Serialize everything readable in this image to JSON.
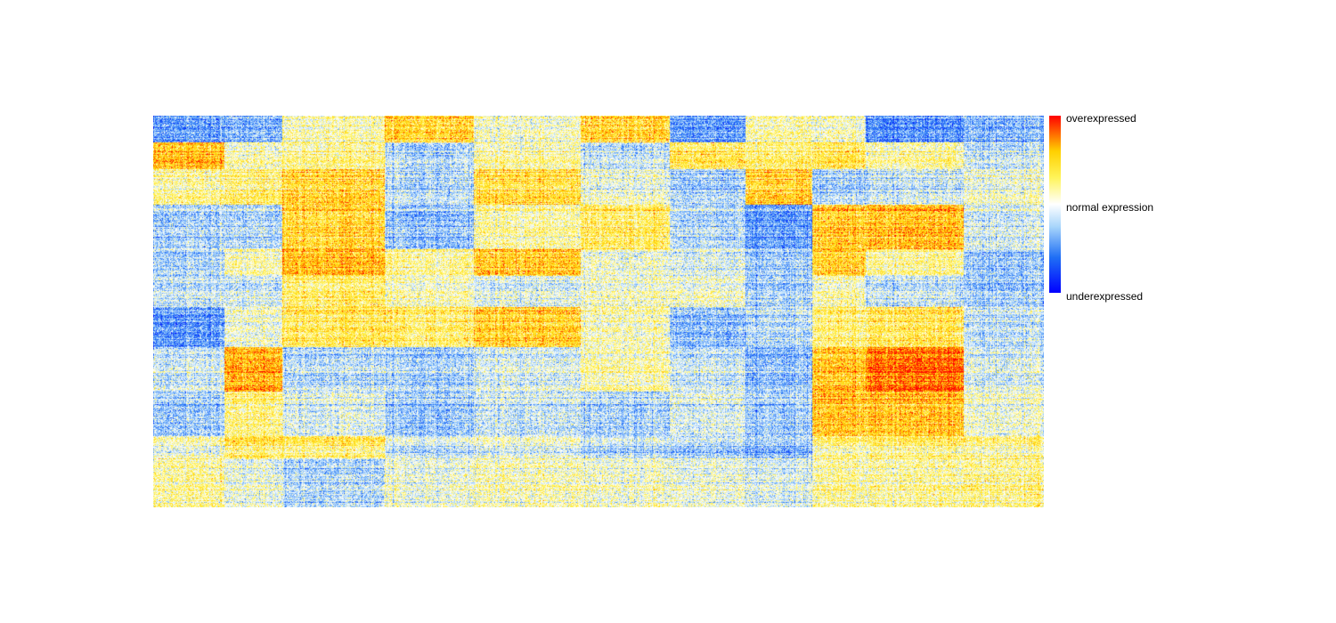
{
  "chart_data": {
    "type": "heatmap",
    "title": "",
    "xlabel": "",
    "ylabel": "",
    "grid": false,
    "legend_position": "right",
    "rows": 440,
    "columns": 1000,
    "value_range": [
      -1,
      1
    ],
    "colorscale": [
      {
        "value": -1.0,
        "color": "#0000ff"
      },
      {
        "value": -0.6,
        "color": "#1f6ff5"
      },
      {
        "value": -0.25,
        "color": "#a9d6fb"
      },
      {
        "value": 0.0,
        "color": "#ffffff"
      },
      {
        "value": 0.3,
        "color": "#fff45a"
      },
      {
        "value": 0.6,
        "color": "#ffd000"
      },
      {
        "value": 1.0,
        "color": "#ff0000"
      }
    ],
    "legend": {
      "top_label": "overexpressed",
      "middle_label": "normal expression",
      "bottom_label": "underexpressed"
    },
    "column_groups": [
      {
        "id": 1,
        "start": 0,
        "end": 80
      },
      {
        "id": 2,
        "start": 80,
        "end": 145
      },
      {
        "id": 3,
        "start": 145,
        "end": 260
      },
      {
        "id": 4,
        "start": 260,
        "end": 360
      },
      {
        "id": 5,
        "start": 360,
        "end": 480
      },
      {
        "id": 6,
        "start": 480,
        "end": 580
      },
      {
        "id": 7,
        "start": 580,
        "end": 665
      },
      {
        "id": 8,
        "start": 665,
        "end": 740
      },
      {
        "id": 9,
        "start": 740,
        "end": 800
      },
      {
        "id": 10,
        "start": 800,
        "end": 910
      },
      {
        "id": 11,
        "start": 910,
        "end": 1000
      }
    ],
    "row_blocks": [
      {
        "start": 0,
        "end": 30,
        "levels": [
          -0.45,
          -0.35,
          0.1,
          0.45,
          0.05,
          0.45,
          -0.45,
          0.1,
          0.05,
          -0.5,
          -0.35
        ]
      },
      {
        "start": 30,
        "end": 60,
        "levels": [
          0.55,
          0.1,
          0.2,
          -0.2,
          0.15,
          -0.15,
          0.35,
          0.25,
          0.35,
          0.15,
          -0.15
        ]
      },
      {
        "start": 60,
        "end": 100,
        "levels": [
          0.15,
          0.25,
          0.45,
          -0.2,
          0.4,
          0.0,
          -0.25,
          0.45,
          -0.25,
          -0.15,
          0.0
        ]
      },
      {
        "start": 100,
        "end": 150,
        "levels": [
          -0.25,
          -0.2,
          0.45,
          -0.3,
          0.15,
          0.3,
          -0.2,
          -0.45,
          0.5,
          0.55,
          -0.1
        ]
      },
      {
        "start": 150,
        "end": 180,
        "levels": [
          -0.25,
          0.1,
          0.55,
          0.15,
          0.5,
          0.0,
          -0.1,
          -0.3,
          0.45,
          0.15,
          -0.3
        ]
      },
      {
        "start": 180,
        "end": 215,
        "levels": [
          -0.15,
          -0.1,
          0.3,
          0.1,
          -0.05,
          0.05,
          0.05,
          -0.25,
          0.1,
          -0.15,
          -0.25
        ]
      },
      {
        "start": 215,
        "end": 260,
        "levels": [
          -0.45,
          0.05,
          0.35,
          0.3,
          0.5,
          0.1,
          -0.3,
          -0.2,
          0.25,
          0.35,
          -0.15
        ]
      },
      {
        "start": 260,
        "end": 310,
        "levels": [
          -0.15,
          0.6,
          -0.2,
          -0.25,
          -0.1,
          0.1,
          -0.15,
          -0.35,
          0.5,
          0.75,
          -0.1
        ]
      },
      {
        "start": 310,
        "end": 360,
        "levels": [
          -0.25,
          0.25,
          -0.05,
          -0.25,
          -0.1,
          -0.2,
          -0.05,
          -0.25,
          0.55,
          0.55,
          0.05
        ]
      },
      {
        "start": 360,
        "end": 385,
        "levels": [
          0.05,
          0.35,
          0.3,
          -0.1,
          0.0,
          -0.15,
          -0.2,
          -0.3,
          0.2,
          0.25,
          0.2
        ]
      },
      {
        "start": 385,
        "end": 440,
        "levels": [
          0.15,
          0.0,
          -0.2,
          0.0,
          0.1,
          0.05,
          0.0,
          -0.1,
          0.15,
          0.15,
          0.2
        ]
      }
    ]
  }
}
